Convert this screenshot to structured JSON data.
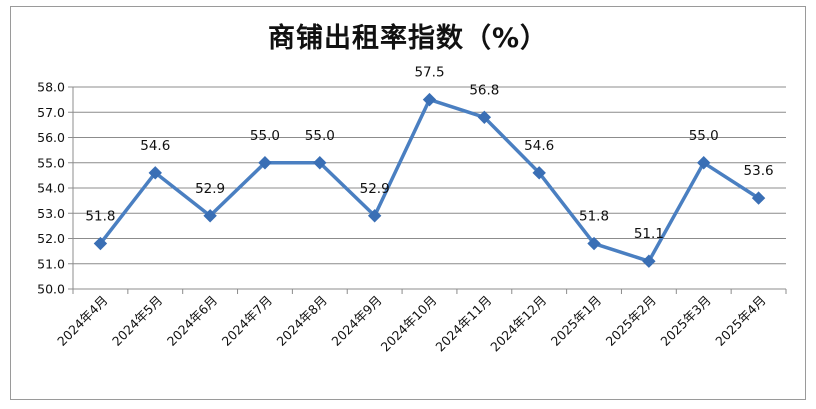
{
  "chart_data": {
    "type": "line",
    "title": "商铺出租率指数（%）",
    "xlabel": "",
    "ylabel": "",
    "categories": [
      "2024年4月",
      "2024年5月",
      "2024年6月",
      "2024年7月",
      "2024年8月",
      "2024年9月",
      "2024年10月",
      "2024年11月",
      "2024年12月",
      "2025年1月",
      "2025年2月",
      "2025年3月",
      "2025年4月"
    ],
    "series": [
      {
        "values": [
          51.8,
          54.6,
          52.9,
          55.0,
          55.0,
          52.9,
          57.5,
          56.8,
          54.6,
          51.8,
          51.1,
          55.0,
          53.6
        ]
      }
    ],
    "data_labels": [
      "51.8",
      "54.6",
      "52.9",
      "55.0",
      "55.0",
      "52.9",
      "57.5",
      "56.8",
      "54.6",
      "51.8",
      "51.1",
      "55.0",
      "53.6"
    ],
    "ylim": [
      50.0,
      58.0
    ],
    "yticks": [
      "50.0",
      "51.0",
      "52.0",
      "53.0",
      "54.0",
      "55.0",
      "56.0",
      "57.0",
      "58.0"
    ],
    "grid": true,
    "legend": "none",
    "colors": {
      "line": "#4a7fc1",
      "marker": "#3a6fb5",
      "grid": "#8c8c8c",
      "axis": "#8c8c8c"
    }
  }
}
